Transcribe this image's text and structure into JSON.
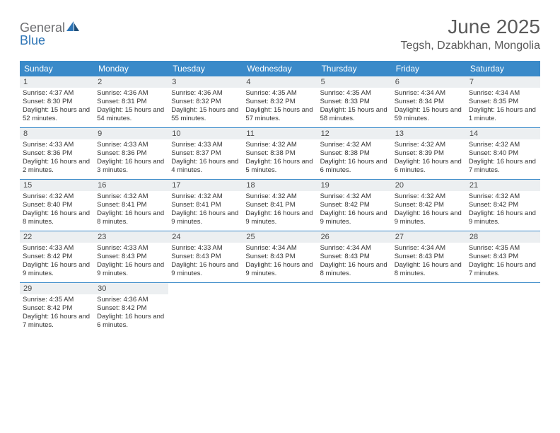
{
  "logo": {
    "general": "General",
    "blue": "Blue"
  },
  "title": "June 2025",
  "location": "Tegsh, Dzabkhan, Mongolia",
  "colors": {
    "header_bg": "#3a8ac9",
    "header_text": "#ffffff",
    "daynum_bg": "#eceff1",
    "text": "#333333",
    "title_text": "#5a5a5a",
    "logo_gray": "#6d6e71",
    "logo_blue": "#2e75b6",
    "rule": "#3a8ac9"
  },
  "weekdays": [
    "Sunday",
    "Monday",
    "Tuesday",
    "Wednesday",
    "Thursday",
    "Friday",
    "Saturday"
  ],
  "days": [
    {
      "n": "1",
      "sunrise": "4:37 AM",
      "sunset": "8:30 PM",
      "daylight": "15 hours and 52 minutes."
    },
    {
      "n": "2",
      "sunrise": "4:36 AM",
      "sunset": "8:31 PM",
      "daylight": "15 hours and 54 minutes."
    },
    {
      "n": "3",
      "sunrise": "4:36 AM",
      "sunset": "8:32 PM",
      "daylight": "15 hours and 55 minutes."
    },
    {
      "n": "4",
      "sunrise": "4:35 AM",
      "sunset": "8:32 PM",
      "daylight": "15 hours and 57 minutes."
    },
    {
      "n": "5",
      "sunrise": "4:35 AM",
      "sunset": "8:33 PM",
      "daylight": "15 hours and 58 minutes."
    },
    {
      "n": "6",
      "sunrise": "4:34 AM",
      "sunset": "8:34 PM",
      "daylight": "15 hours and 59 minutes."
    },
    {
      "n": "7",
      "sunrise": "4:34 AM",
      "sunset": "8:35 PM",
      "daylight": "16 hours and 1 minute."
    },
    {
      "n": "8",
      "sunrise": "4:33 AM",
      "sunset": "8:36 PM",
      "daylight": "16 hours and 2 minutes."
    },
    {
      "n": "9",
      "sunrise": "4:33 AM",
      "sunset": "8:36 PM",
      "daylight": "16 hours and 3 minutes."
    },
    {
      "n": "10",
      "sunrise": "4:33 AM",
      "sunset": "8:37 PM",
      "daylight": "16 hours and 4 minutes."
    },
    {
      "n": "11",
      "sunrise": "4:32 AM",
      "sunset": "8:38 PM",
      "daylight": "16 hours and 5 minutes."
    },
    {
      "n": "12",
      "sunrise": "4:32 AM",
      "sunset": "8:38 PM",
      "daylight": "16 hours and 6 minutes."
    },
    {
      "n": "13",
      "sunrise": "4:32 AM",
      "sunset": "8:39 PM",
      "daylight": "16 hours and 6 minutes."
    },
    {
      "n": "14",
      "sunrise": "4:32 AM",
      "sunset": "8:40 PM",
      "daylight": "16 hours and 7 minutes."
    },
    {
      "n": "15",
      "sunrise": "4:32 AM",
      "sunset": "8:40 PM",
      "daylight": "16 hours and 8 minutes."
    },
    {
      "n": "16",
      "sunrise": "4:32 AM",
      "sunset": "8:41 PM",
      "daylight": "16 hours and 8 minutes."
    },
    {
      "n": "17",
      "sunrise": "4:32 AM",
      "sunset": "8:41 PM",
      "daylight": "16 hours and 9 minutes."
    },
    {
      "n": "18",
      "sunrise": "4:32 AM",
      "sunset": "8:41 PM",
      "daylight": "16 hours and 9 minutes."
    },
    {
      "n": "19",
      "sunrise": "4:32 AM",
      "sunset": "8:42 PM",
      "daylight": "16 hours and 9 minutes."
    },
    {
      "n": "20",
      "sunrise": "4:32 AM",
      "sunset": "8:42 PM",
      "daylight": "16 hours and 9 minutes."
    },
    {
      "n": "21",
      "sunrise": "4:32 AM",
      "sunset": "8:42 PM",
      "daylight": "16 hours and 9 minutes."
    },
    {
      "n": "22",
      "sunrise": "4:33 AM",
      "sunset": "8:42 PM",
      "daylight": "16 hours and 9 minutes."
    },
    {
      "n": "23",
      "sunrise": "4:33 AM",
      "sunset": "8:43 PM",
      "daylight": "16 hours and 9 minutes."
    },
    {
      "n": "24",
      "sunrise": "4:33 AM",
      "sunset": "8:43 PM",
      "daylight": "16 hours and 9 minutes."
    },
    {
      "n": "25",
      "sunrise": "4:34 AM",
      "sunset": "8:43 PM",
      "daylight": "16 hours and 9 minutes."
    },
    {
      "n": "26",
      "sunrise": "4:34 AM",
      "sunset": "8:43 PM",
      "daylight": "16 hours and 8 minutes."
    },
    {
      "n": "27",
      "sunrise": "4:34 AM",
      "sunset": "8:43 PM",
      "daylight": "16 hours and 8 minutes."
    },
    {
      "n": "28",
      "sunrise": "4:35 AM",
      "sunset": "8:43 PM",
      "daylight": "16 hours and 7 minutes."
    },
    {
      "n": "29",
      "sunrise": "4:35 AM",
      "sunset": "8:42 PM",
      "daylight": "16 hours and 7 minutes."
    },
    {
      "n": "30",
      "sunrise": "4:36 AM",
      "sunset": "8:42 PM",
      "daylight": "16 hours and 6 minutes."
    }
  ],
  "labels": {
    "sunrise": "Sunrise:",
    "sunset": "Sunset:",
    "daylight": "Daylight:"
  },
  "layout": {
    "start_weekday": 0,
    "total_cells": 35,
    "cols": 7
  }
}
